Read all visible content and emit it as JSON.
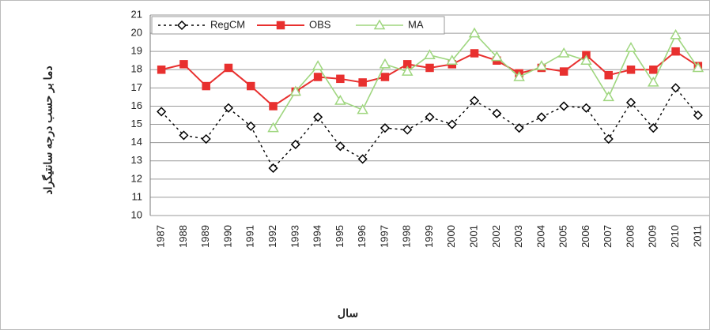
{
  "chart_data": {
    "type": "line",
    "y_label": "دما بر حسب درجه سانتیگراد",
    "x_label": "سال",
    "categories": [
      "1987",
      "1988",
      "1989",
      "1990",
      "1991",
      "1992",
      "1993",
      "1994",
      "1995",
      "1996",
      "1997",
      "1998",
      "1999",
      "2000",
      "2001",
      "2002",
      "2003",
      "2004",
      "2005",
      "2006",
      "2007",
      "2008",
      "2009",
      "2010",
      "2011"
    ],
    "series": [
      {
        "name": "RegCM",
        "color": "#000000",
        "values": [
          15.7,
          14.4,
          14.2,
          15.9,
          14.9,
          12.6,
          13.9,
          15.4,
          13.8,
          13.1,
          14.8,
          14.7,
          15.4,
          15.0,
          16.3,
          15.6,
          14.8,
          15.4,
          16.0,
          15.9,
          14.2,
          16.2,
          14.8,
          17.0,
          15.5
        ]
      },
      {
        "name": "OBS",
        "color": "#e8302f",
        "values": [
          18.0,
          18.3,
          17.1,
          18.1,
          17.1,
          16.0,
          16.8,
          17.6,
          17.5,
          17.3,
          17.6,
          18.3,
          18.1,
          18.3,
          18.9,
          18.5,
          17.8,
          18.1,
          17.9,
          18.8,
          17.7,
          18.0,
          18.0,
          19.0,
          18.2
        ]
      },
      {
        "name": "MA",
        "color": "#9fd67f",
        "values": [
          null,
          null,
          null,
          null,
          null,
          14.8,
          16.8,
          18.2,
          16.3,
          15.8,
          18.3,
          17.9,
          18.8,
          18.5,
          20.0,
          18.7,
          17.6,
          18.2,
          18.9,
          18.5,
          16.5,
          19.2,
          17.3,
          19.9,
          18.1
        ]
      }
    ],
    "ylim": [
      10,
      21
    ],
    "yticks": [
      10,
      11,
      12,
      13,
      14,
      15,
      16,
      17,
      18,
      19,
      20,
      21
    ],
    "grid": true
  }
}
